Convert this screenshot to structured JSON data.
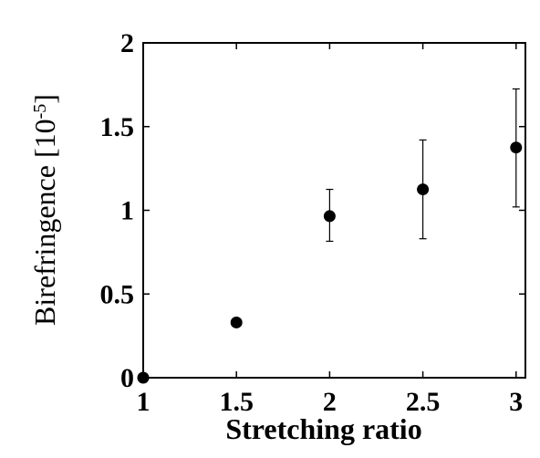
{
  "chart_data": {
    "type": "scatter",
    "xlabel": "Stretching ratio",
    "ylabel": "Birefringence [10",
    "ylabel_superscript": "-5",
    "ylabel_suffix": "]",
    "xlim": [
      1,
      3.05
    ],
    "ylim": [
      0,
      2
    ],
    "x_ticks": [
      1,
      1.5,
      2,
      2.5,
      3
    ],
    "x_tick_labels": [
      "1",
      "1.5",
      "2",
      "2.5",
      "3"
    ],
    "y_ticks": [
      0,
      0.5,
      1,
      1.5,
      2
    ],
    "y_tick_labels": [
      "0",
      "0.5",
      "1",
      "1.5",
      "2"
    ],
    "grid": false,
    "points": [
      {
        "x": 1.0,
        "y": 0.0,
        "err_low": null,
        "err_high": null
      },
      {
        "x": 1.5,
        "y": 0.33,
        "err_low": null,
        "err_high": null
      },
      {
        "x": 2.0,
        "y": 0.965,
        "err_low": 0.815,
        "err_high": 1.125
      },
      {
        "x": 2.5,
        "y": 1.125,
        "err_low": 0.83,
        "err_high": 1.42
      },
      {
        "x": 3.0,
        "y": 1.375,
        "err_low": 1.02,
        "err_high": 1.725
      }
    ]
  }
}
